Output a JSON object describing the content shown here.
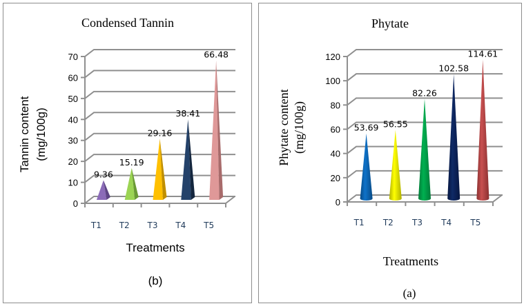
{
  "chart_data": [
    {
      "type": "bar",
      "bar_shape": "3d-pyramid",
      "title": "Condensed Tannin",
      "caption": "(b)",
      "xlabel": "Treatments",
      "ylabel_lines": [
        "Tannin content",
        "(mg/100g)"
      ],
      "categories": [
        "T1",
        "T2",
        "T3",
        "T4",
        "T5"
      ],
      "values": [
        9.36,
        15.19,
        29.16,
        38.41,
        66.48
      ],
      "value_labels": [
        "9.36",
        "15.19",
        "29.16",
        "38.41",
        "66.48"
      ],
      "ylim": [
        0,
        70
      ],
      "yticks": [
        0,
        10,
        20,
        30,
        40,
        50,
        60,
        70
      ],
      "grid": true,
      "legend": "none",
      "colors": [
        "#8b6bb8",
        "#9bd453",
        "#ffc000",
        "#24426a",
        "#df9898"
      ],
      "shade_colors": [
        "#5e4585",
        "#6a9a34",
        "#c08f00",
        "#14263e",
        "#a86b6b"
      ]
    },
    {
      "type": "bar",
      "bar_shape": "3d-cone",
      "title": "Phytate",
      "caption": "(a)",
      "xlabel": "Treatments",
      "ylabel_lines": [
        "Phytate content",
        "(mg/100g)"
      ],
      "categories": [
        "T1",
        "T2",
        "T3",
        "T4",
        "T5"
      ],
      "values": [
        53.69,
        56.55,
        82.26,
        102.58,
        114.61
      ],
      "value_labels": [
        "53.69",
        "56.55",
        "82.26",
        "102.58",
        "114.61"
      ],
      "ylim": [
        0,
        120
      ],
      "yticks": [
        0,
        20,
        40,
        60,
        80,
        100,
        120
      ],
      "grid": true,
      "legend": "none",
      "colors": [
        "#0e72c9",
        "#ffff00",
        "#00b050",
        "#0f2a66",
        "#c85050"
      ],
      "shade_colors": [
        "#074a85",
        "#b0b000",
        "#007a38",
        "#061640",
        "#8a3030"
      ]
    }
  ]
}
